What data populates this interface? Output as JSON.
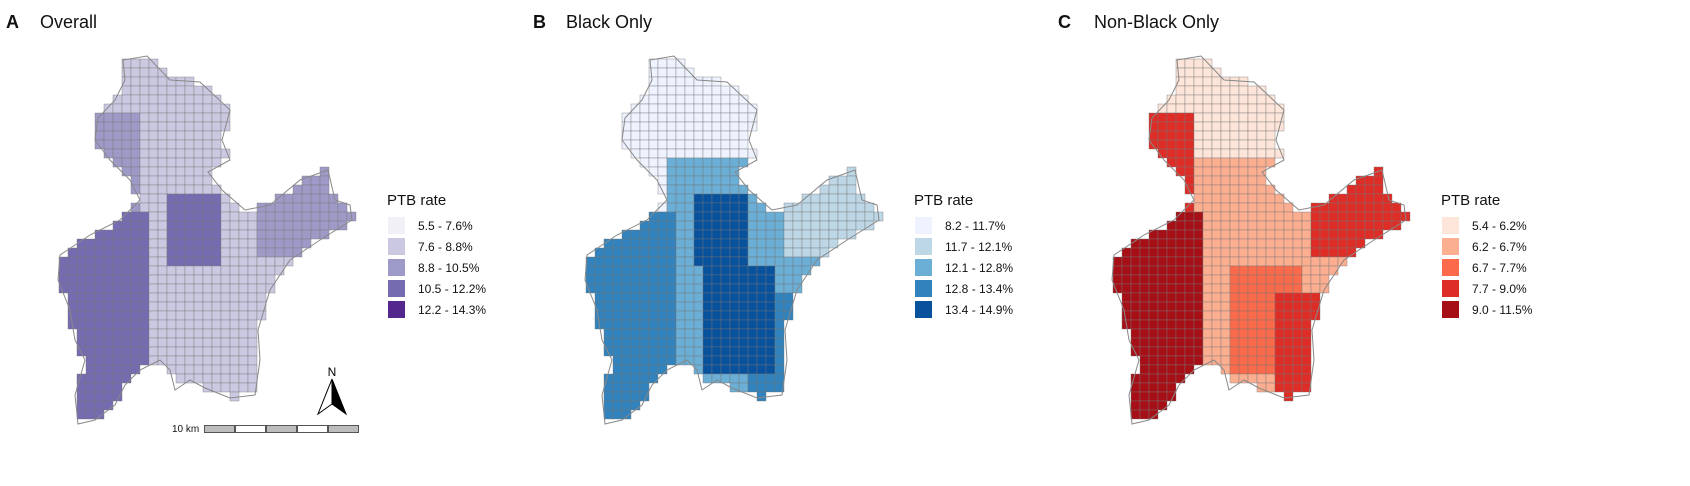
{
  "panels": [
    {
      "letter": "A",
      "title": "Overall",
      "legend_title": "PTB rate",
      "legend": [
        {
          "label": "5.5 -  7.6%",
          "color": "#f2f0f7"
        },
        {
          "label": "7.6 -  8.8%",
          "color": "#cbc9e2"
        },
        {
          "label": "8.8 - 10.5%",
          "color": "#9e9ac8"
        },
        {
          "label": "10.5 - 12.2%",
          "color": "#756bb1"
        },
        {
          "label": "12.2 - 14.3%",
          "color": "#54278f"
        }
      ]
    },
    {
      "letter": "B",
      "title": "Black Only",
      "legend_title": "PTB rate",
      "legend": [
        {
          "label": "8.2 - 11.7%",
          "color": "#eff3ff"
        },
        {
          "label": "11.7 - 12.1%",
          "color": "#bdd7e7"
        },
        {
          "label": "12.1 - 12.8%",
          "color": "#6baed6"
        },
        {
          "label": "12.8 - 13.4%",
          "color": "#3182bd"
        },
        {
          "label": "13.4 - 14.9%",
          "color": "#08519c"
        }
      ]
    },
    {
      "letter": "C",
      "title": "Non-Black Only",
      "legend_title": "PTB rate",
      "legend": [
        {
          "label": "5.4 -  6.2%",
          "color": "#fee5d9"
        },
        {
          "label": "6.2 -  6.7%",
          "color": "#fcae91"
        },
        {
          "label": "6.7 -  7.7%",
          "color": "#fb6a4a"
        },
        {
          "label": "7.7 -  9.0%",
          "color": "#de2d26"
        },
        {
          "label": "9.0 - 11.5%",
          "color": "#a50f15"
        }
      ]
    }
  ],
  "north_arrow_label": "N",
  "scale_label": "10 km"
}
